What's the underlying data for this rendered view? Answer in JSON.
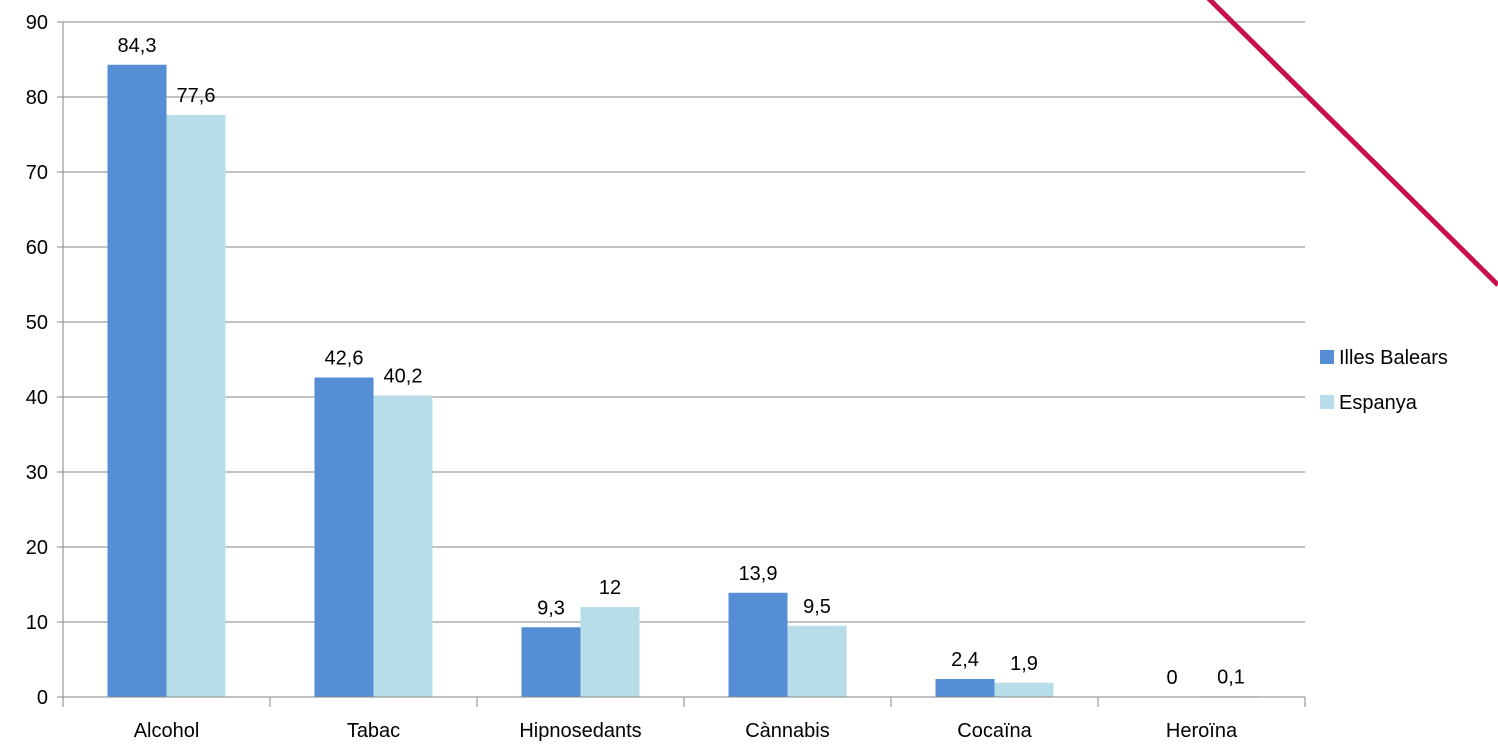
{
  "chart_data": {
    "type": "bar",
    "categories": [
      "Alcohol",
      "Tabac",
      "Hipnosedants",
      "Cànnabis",
      "Cocaïna",
      "Heroïna"
    ],
    "series": [
      {
        "name": "Illes Balears",
        "values": [
          84.3,
          42.6,
          9.3,
          13.9,
          2.4,
          0
        ],
        "labels": [
          "84,3",
          "42,6",
          "9,3",
          "13,9",
          "2,4",
          "0"
        ],
        "color": "#558ED5"
      },
      {
        "name": "Espanya",
        "values": [
          77.6,
          40.2,
          12,
          9.5,
          1.9,
          0.1
        ],
        "labels": [
          "77,6",
          "40,2",
          "12",
          "9,5",
          "1,9",
          "0,1"
        ],
        "color": "#B7DEE8"
      }
    ],
    "ylim": [
      0,
      90
    ],
    "yticks": [
      "0",
      "10",
      "20",
      "30",
      "40",
      "50",
      "60",
      "70",
      "80",
      "90"
    ],
    "grid": true,
    "legend_position": "right",
    "annotation_line_color": "#C8104A"
  }
}
